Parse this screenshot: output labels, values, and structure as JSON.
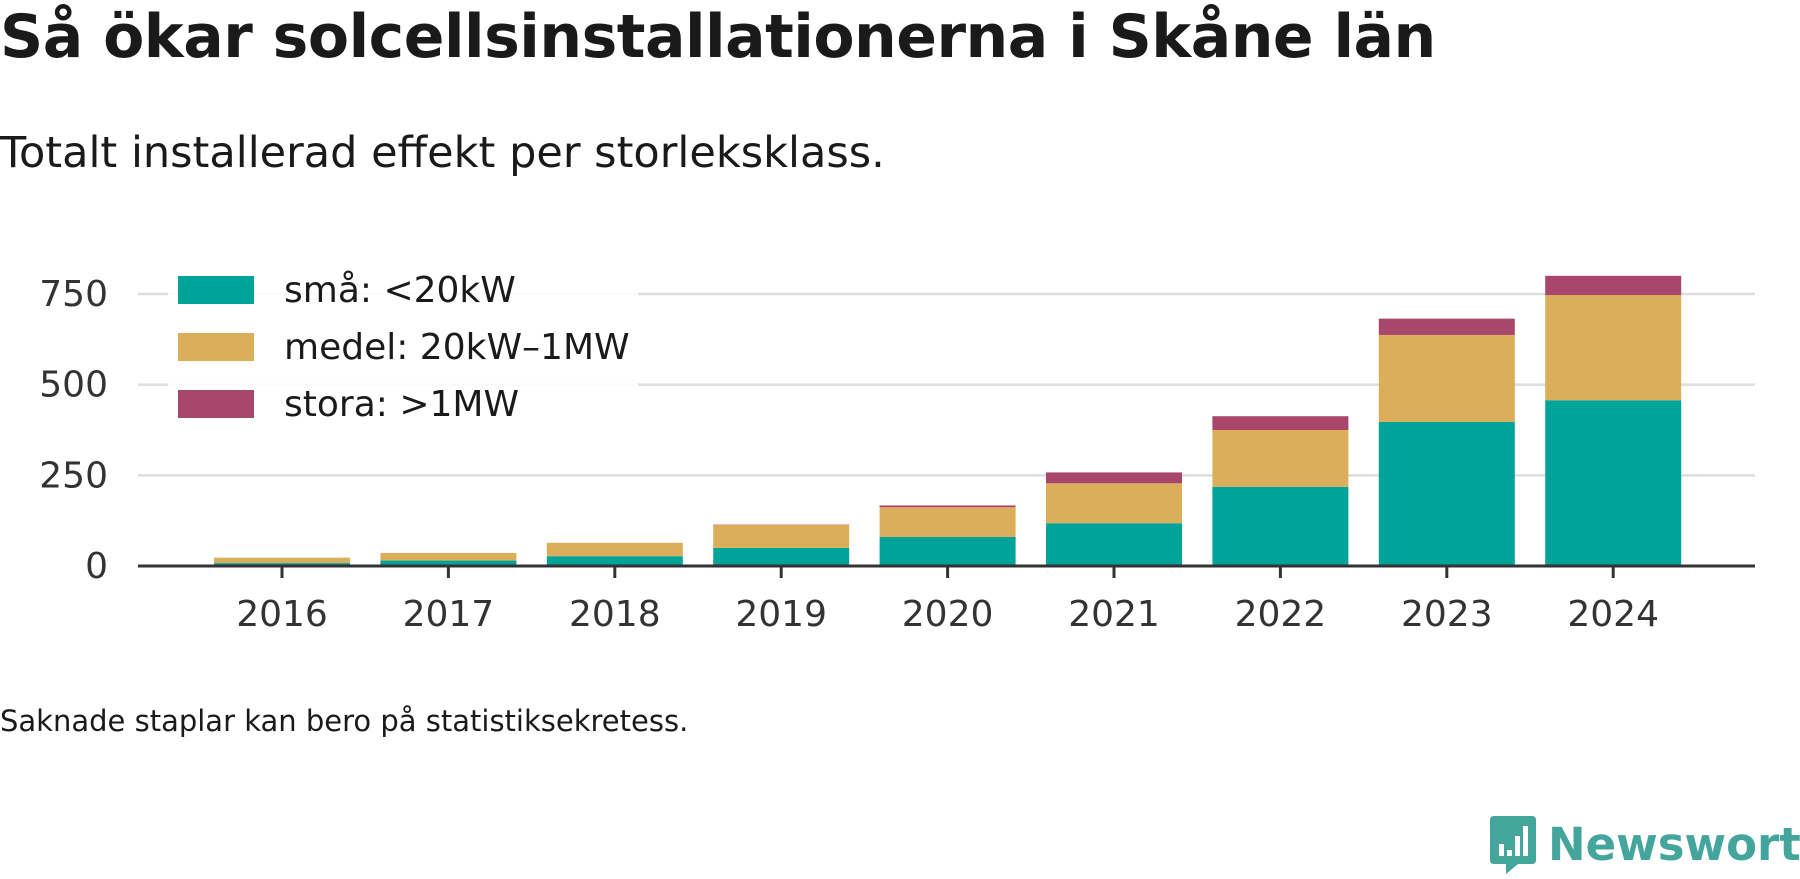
{
  "title": "Så ökar solcellsinstallationerna i Skåne län",
  "subtitle": "Totalt installerad effekt per storleksklass.",
  "footnote": "Saknade staplar kan bero på statistiksekretess.",
  "brand": {
    "name": "Newsworthy",
    "logo_icon": "bar-chart-speech-bubble-icon",
    "color": "#44a59c"
  },
  "chart_data": {
    "type": "bar",
    "stacked": true,
    "categories": [
      "2016",
      "2017",
      "2018",
      "2019",
      "2020",
      "2021",
      "2022",
      "2023",
      "2024"
    ],
    "series": [
      {
        "name": "små: <20kW",
        "color": "#00a398",
        "values": [
          8,
          15,
          27,
          50,
          80,
          118,
          218,
          397,
          457
        ]
      },
      {
        "name": "medel: 20kW–1MW",
        "color": "#dbae5b",
        "values": [
          15,
          21,
          37,
          63,
          82,
          110,
          157,
          240,
          290
        ]
      },
      {
        "name": "stora: >1MW",
        "color": "#a8466c",
        "values": [
          0,
          0,
          0,
          1,
          5,
          30,
          38,
          45,
          53
        ]
      }
    ],
    "yticks": [
      0,
      250,
      500,
      750
    ],
    "ylim": [
      0,
      825
    ],
    "grid": true,
    "legend_position": "top-left"
  }
}
